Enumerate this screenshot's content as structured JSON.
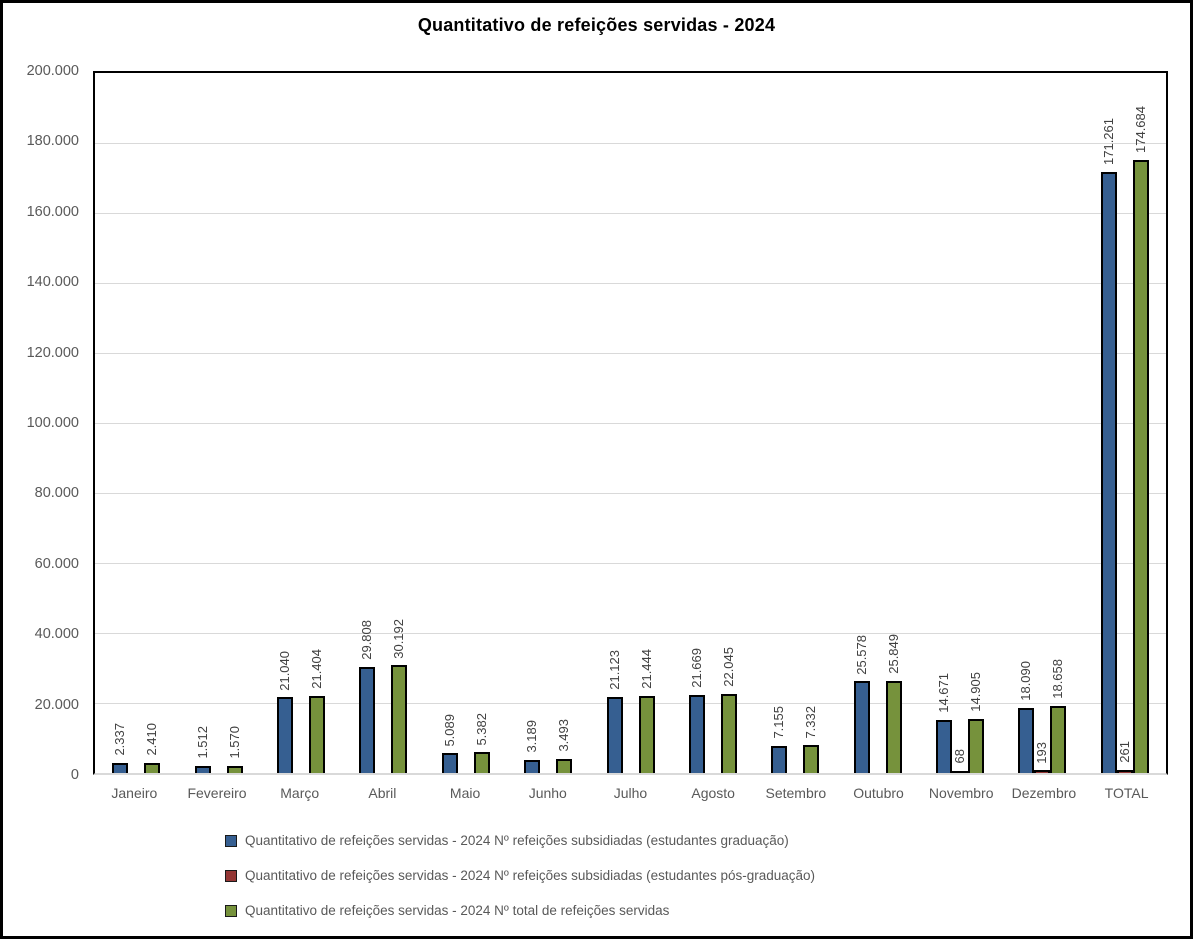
{
  "chart_data": {
    "type": "bar",
    "title": "Quantitativo de refeições servidas - 2024",
    "categories": [
      "Janeiro",
      "Fevereiro",
      "Março",
      "Abril",
      "Maio",
      "Junho",
      "Julho",
      "Agosto",
      "Setembro",
      "Outubro",
      "Novembro",
      "Dezembro",
      "TOTAL"
    ],
    "series": [
      {
        "name": "Quantitativo de refeições servidas - 2024 Nº refeições subsidiadas (estudantes graduação)",
        "key": "graduacao",
        "color": "#365f91",
        "values": [
          2337,
          1512,
          21040,
          29808,
          5089,
          3189,
          21123,
          21669,
          7155,
          25578,
          14671,
          18090,
          171261
        ],
        "labels": [
          "2.337",
          "1.512",
          "21.040",
          "29.808",
          "5.089",
          "3.189",
          "21.123",
          "21.669",
          "7.155",
          "25.578",
          "14.671",
          "18.090",
          "171.261"
        ]
      },
      {
        "name": "Quantitativo de refeições servidas - 2024 Nº refeições subsidiadas (estudantes pós-graduação)",
        "key": "pos-graduacao",
        "color": "#943634",
        "values": [
          0,
          0,
          0,
          0,
          0,
          0,
          0,
          0,
          0,
          0,
          68,
          193,
          261
        ],
        "labels": [
          "",
          "",
          "",
          "",
          "",
          "",
          "",
          "",
          "",
          "",
          "68",
          "193",
          "261"
        ]
      },
      {
        "name": "Quantitativo de refeições servidas - 2024 Nº total de refeições servidas",
        "key": "total",
        "color": "#76923c",
        "values": [
          2410,
          1570,
          21404,
          30192,
          5382,
          3493,
          21444,
          22045,
          7332,
          25849,
          14905,
          18658,
          174684
        ],
        "labels": [
          "2.410",
          "1.570",
          "21.404",
          "30.192",
          "5.382",
          "3.493",
          "21.444",
          "22.045",
          "7.332",
          "25.849",
          "14.905",
          "18.658",
          "174.684"
        ]
      }
    ],
    "ylim": [
      0,
      200000
    ],
    "y_tick_labels": [
      "200.000",
      "180.000",
      "160.000",
      "140.000",
      "120.000",
      "100.000",
      "80.000",
      "60.000",
      "40.000",
      "20.000",
      "0"
    ],
    "grid": true,
    "legend_position": "bottom-left",
    "bar_outline_color": "#000000",
    "axis_text_color": "#595959"
  }
}
